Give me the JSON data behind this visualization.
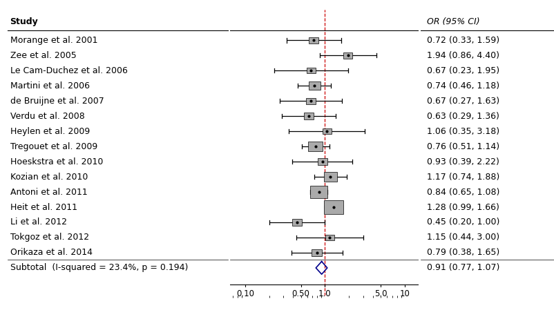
{
  "studies": [
    {
      "label": "Morange et al. 2001",
      "or": 0.72,
      "lo": 0.33,
      "hi": 1.59,
      "weight": 3.5
    },
    {
      "label": "Zee et al. 2005",
      "or": 1.94,
      "lo": 0.86,
      "hi": 4.4,
      "weight": 3.0
    },
    {
      "label": "Le Cam-Duchez et al. 2006",
      "or": 0.67,
      "lo": 0.23,
      "hi": 1.95,
      "weight": 2.5
    },
    {
      "label": "Martini et al. 2006",
      "or": 0.74,
      "lo": 0.46,
      "hi": 1.18,
      "weight": 6.0
    },
    {
      "label": "de Bruijne et al. 2007",
      "or": 0.67,
      "lo": 0.27,
      "hi": 1.63,
      "weight": 3.5
    },
    {
      "label": "Verdu et al. 2008",
      "or": 0.63,
      "lo": 0.29,
      "hi": 1.36,
      "weight": 4.0
    },
    {
      "label": "Heylen et al. 2009",
      "or": 1.06,
      "lo": 0.35,
      "hi": 3.18,
      "weight": 2.5
    },
    {
      "label": "Tregouet et al. 2009",
      "or": 0.76,
      "lo": 0.51,
      "hi": 1.14,
      "weight": 8.5
    },
    {
      "label": "Hoeskstra et al. 2010",
      "or": 0.93,
      "lo": 0.39,
      "hi": 2.22,
      "weight": 3.5
    },
    {
      "label": "Kozian et al. 2010",
      "or": 1.17,
      "lo": 0.74,
      "hi": 1.88,
      "weight": 7.5
    },
    {
      "label": "Antoni et al. 2011",
      "or": 0.84,
      "lo": 0.65,
      "hi": 1.08,
      "weight": 12.0
    },
    {
      "label": "Heit et al. 2011",
      "or": 1.28,
      "lo": 0.99,
      "hi": 1.66,
      "weight": 14.0
    },
    {
      "label": "Li et al. 2012",
      "or": 0.45,
      "lo": 0.2,
      "hi": 1.0,
      "weight": 3.5
    },
    {
      "label": "Tokgoz et al. 2012",
      "or": 1.15,
      "lo": 0.44,
      "hi": 3.0,
      "weight": 3.0
    },
    {
      "label": "Orikaza et al. 2014",
      "or": 0.79,
      "lo": 0.38,
      "hi": 1.65,
      "weight": 4.0
    }
  ],
  "subtotal": {
    "or": 0.91,
    "lo": 0.77,
    "hi": 1.07,
    "label": "Subtotal  (I-squared = 23.4%, p = 0.194)"
  },
  "col_header": "OR (95% CI)",
  "study_header": "Study",
  "x_ticks": [
    0.1,
    0.5,
    1.0,
    5.0,
    10
  ],
  "x_tick_labels": [
    "0.10",
    "0.50",
    "1.0",
    "5.0",
    "10"
  ],
  "x_min": 0.065,
  "x_max": 15.0,
  "box_color": "#aaaaaa",
  "line_color": "#000000",
  "ref_line_color": "#cc0000",
  "diamond_color": "#00008b",
  "diamond_fill": "none"
}
